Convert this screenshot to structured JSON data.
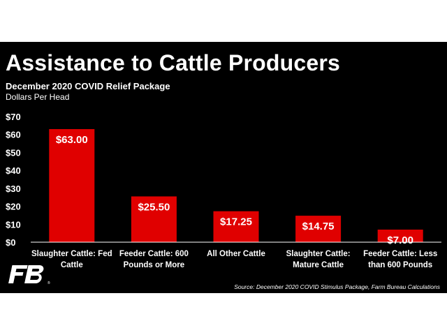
{
  "header": {
    "title": "Assistance to Cattle Producers",
    "subtitle": "December 2020 COVID Relief Package",
    "unit": "Dollars Per Head"
  },
  "footer": {
    "source": "Source: December 2020 COVID Stimulus Package, Farm Bureau Calculations",
    "logo_text": "FB"
  },
  "colors": {
    "background": "#000000",
    "bar": "#e00000",
    "text": "#ffffff"
  },
  "chart_data": {
    "type": "bar",
    "categories": [
      [
        "Slaughter Cattle: Fed",
        "Cattle"
      ],
      [
        "Feeder Cattle: 600",
        "Pounds or More"
      ],
      [
        "All Other Cattle"
      ],
      [
        "Slaughter Cattle:",
        "Mature Cattle"
      ],
      [
        "Feeder Cattle: Less",
        "than 600 Pounds"
      ]
    ],
    "values": [
      63.0,
      25.5,
      17.25,
      14.75,
      7.0
    ],
    "data_labels": [
      "$63.00",
      "$25.50",
      "$17.25",
      "$14.75",
      "$7.00"
    ],
    "title": "Assistance to Cattle Producers",
    "ylim": [
      0,
      70
    ],
    "yticks": [
      0,
      10,
      20,
      30,
      40,
      50,
      60,
      70
    ],
    "ytick_labels": [
      "$0",
      "$10",
      "$20",
      "$30",
      "$40",
      "$50",
      "$60",
      "$70"
    ],
    "grid": false,
    "legend": "none"
  }
}
